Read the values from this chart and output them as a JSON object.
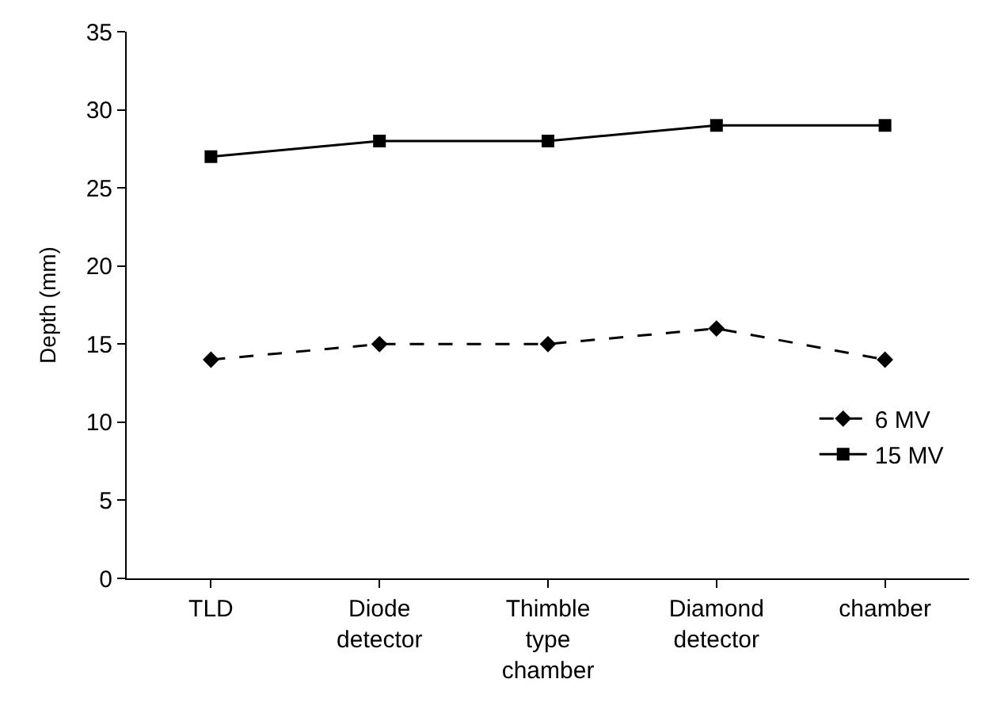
{
  "chart_data": {
    "type": "line",
    "ylabel": "Depth (mm)",
    "categories": [
      "TLD",
      "Diode\ndetector",
      "Thimble\ntype\nchamber",
      "Diamond\ndetector",
      "chamber"
    ],
    "series": [
      {
        "name": "6 MV",
        "color": "#000000",
        "values": [
          14,
          15,
          15,
          16,
          14
        ],
        "marker": "diamond",
        "line_style": "dashed"
      },
      {
        "name": "15 MV",
        "color": "#000000",
        "values": [
          27,
          28,
          28,
          29,
          29
        ],
        "marker": "square",
        "line_style": "solid"
      }
    ],
    "ylim": [
      0,
      35
    ],
    "yticks": [
      0,
      5,
      10,
      15,
      20,
      25,
      30,
      35
    ],
    "legend": "bottom right"
  }
}
